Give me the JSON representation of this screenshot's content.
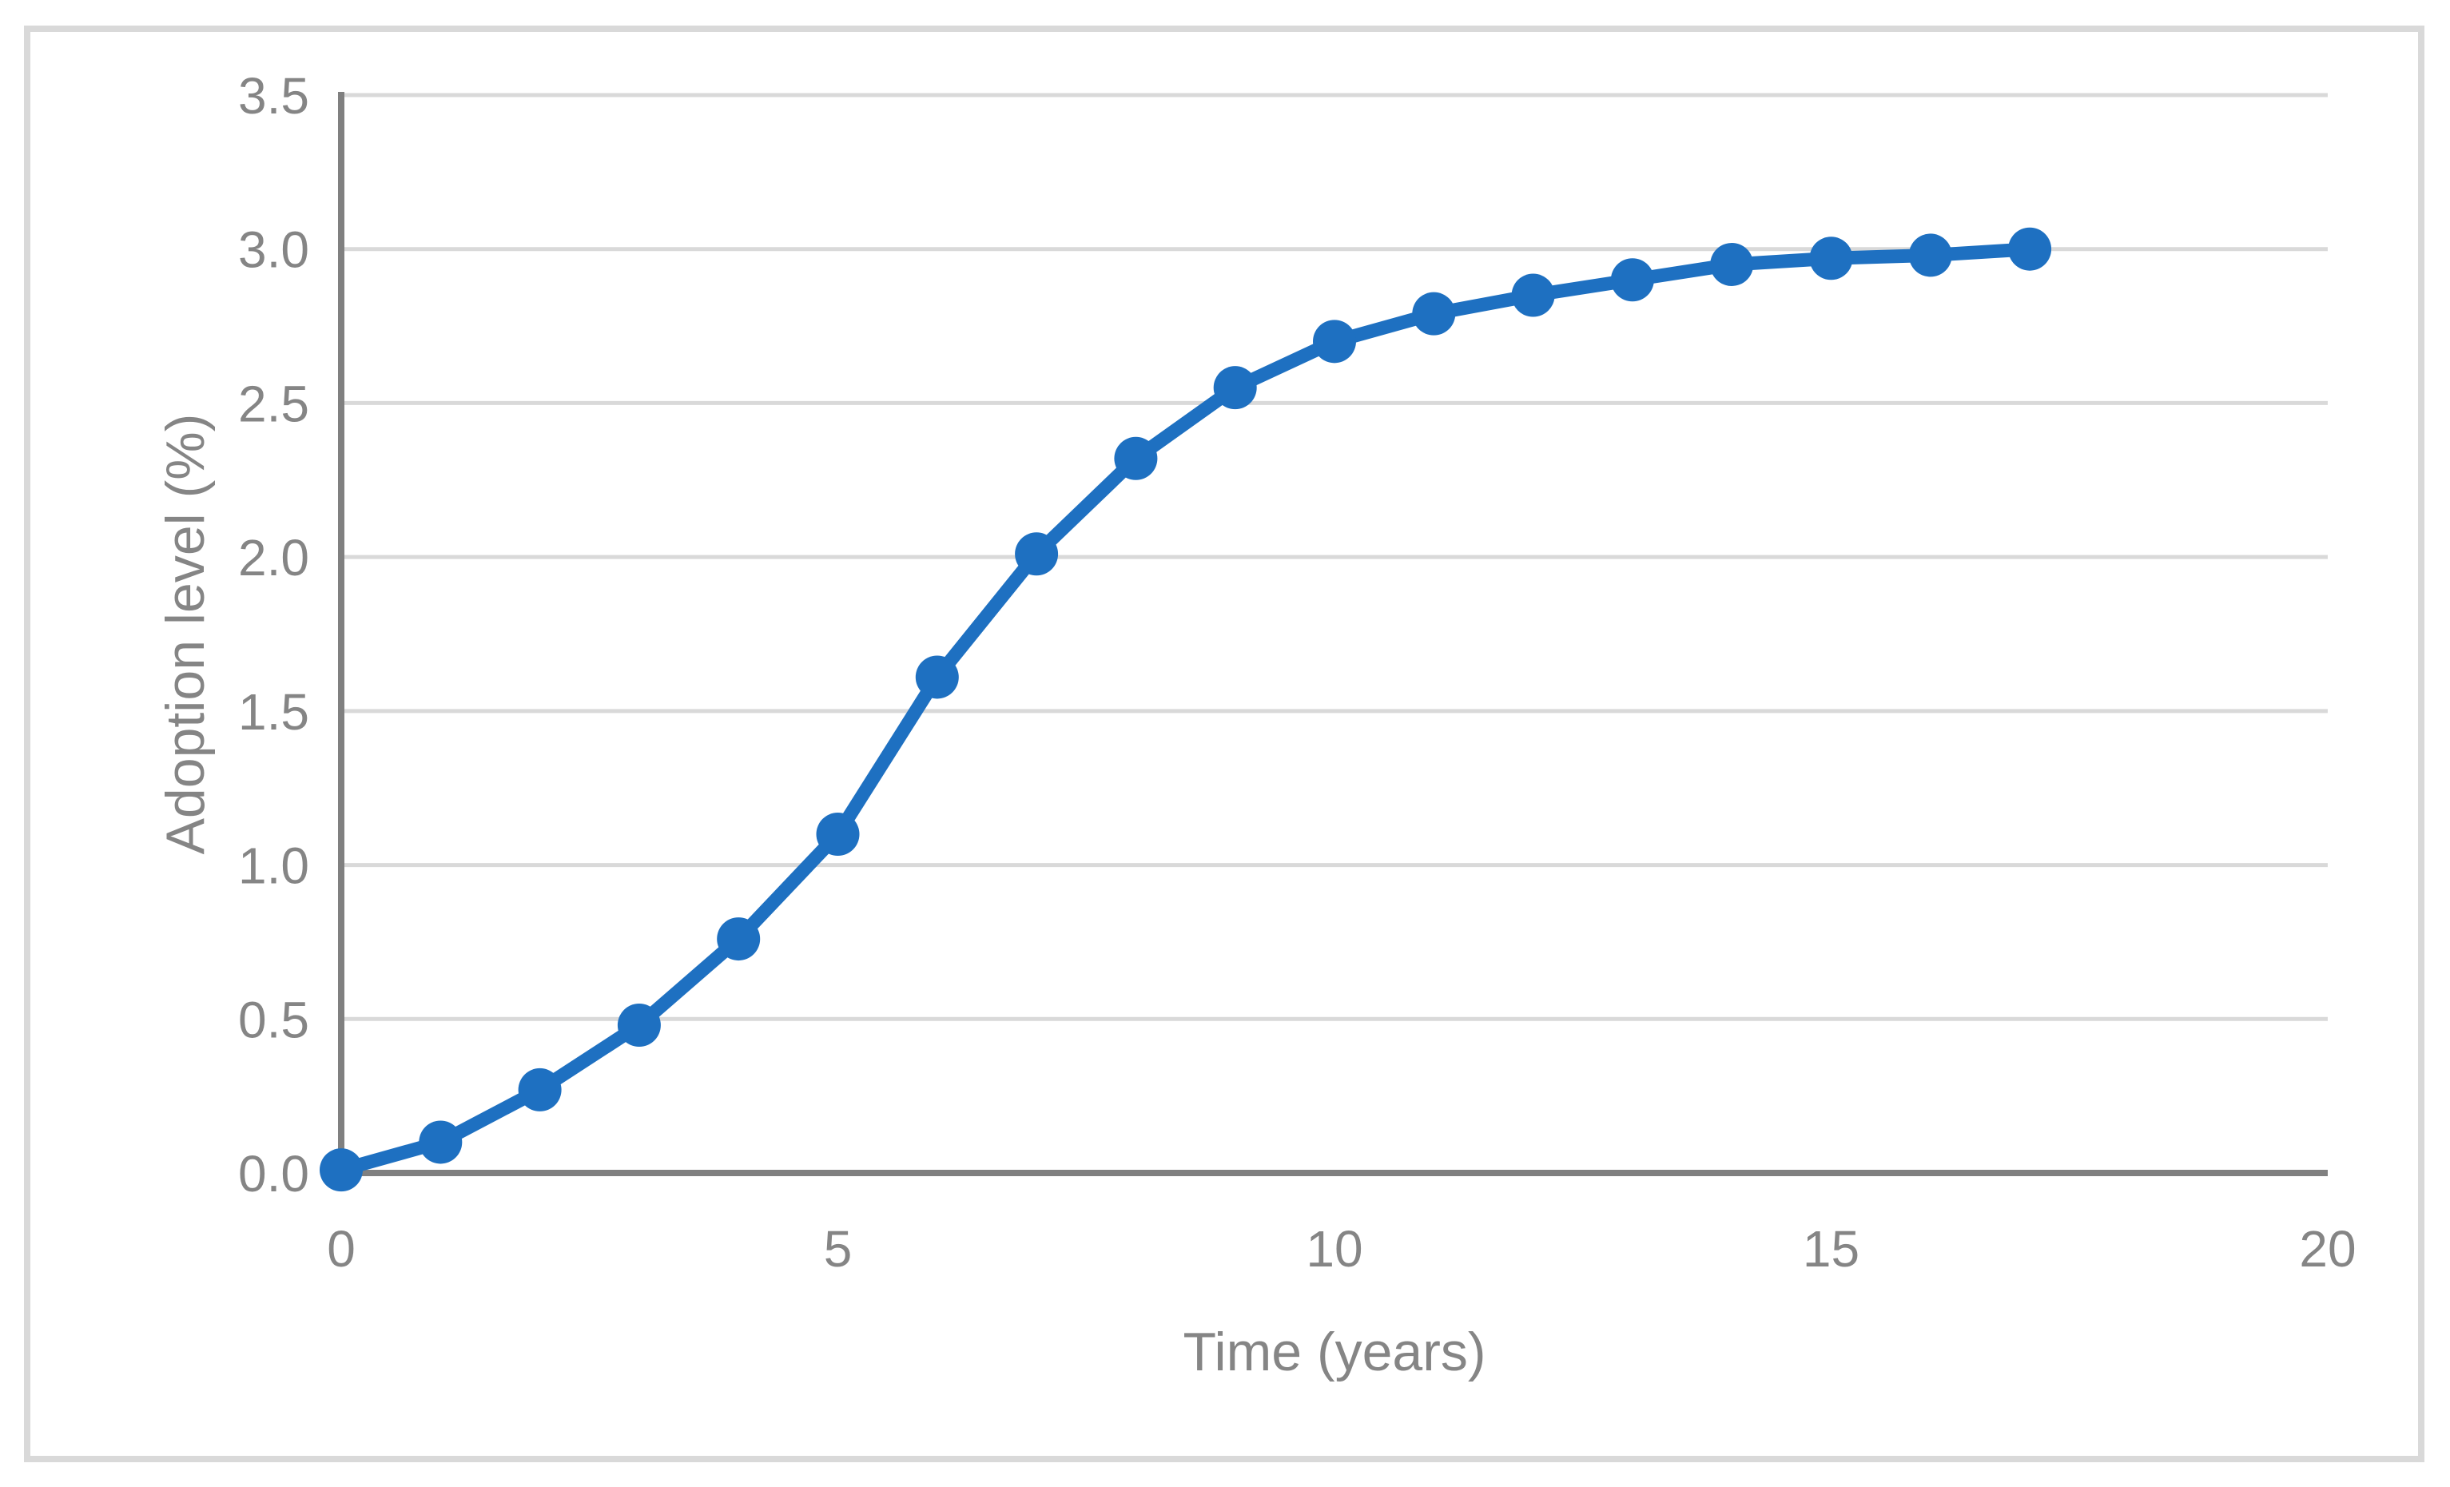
{
  "figure": {
    "description": "Line chart of technology adoption level versus time",
    "background": "#FFFFFF"
  },
  "chart_data": {
    "type": "line",
    "title": "",
    "xlabel": "Time (years)",
    "ylabel": "Adoption level (%)",
    "x": [
      0,
      1,
      2,
      3,
      4,
      5,
      6,
      7,
      8,
      9,
      10,
      11,
      12,
      13,
      14,
      15,
      16,
      17
    ],
    "y": [
      0.01,
      0.1,
      0.27,
      0.48,
      0.76,
      1.1,
      1.61,
      2.01,
      2.32,
      2.55,
      2.7,
      2.79,
      2.85,
      2.9,
      2.95,
      2.97,
      2.98,
      3.0
    ],
    "xlim": [
      0,
      20
    ],
    "ylim": [
      0,
      3.5
    ],
    "x_ticks": [
      "0",
      "5",
      "10",
      "15",
      "20"
    ],
    "y_ticks": [
      "0.0",
      "0.5",
      "1.0",
      "1.5",
      "2.0",
      "2.5",
      "3.0",
      "3.5"
    ],
    "grid": "horizontal-major",
    "legend": "none",
    "marker": "circle",
    "colors": {
      "series": "#1E70C1",
      "gridline": "#D9D9D9",
      "axis_line": "#808080",
      "tick_text": "#858585",
      "frame_border": "#D9D9D9",
      "background": "#FFFFFF"
    }
  }
}
